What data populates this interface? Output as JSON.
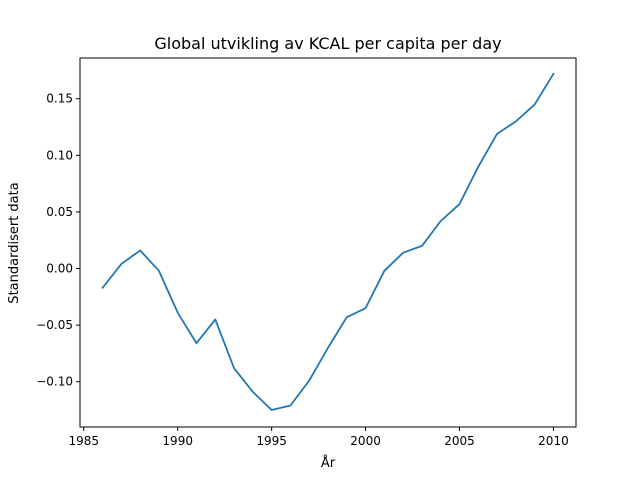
{
  "chart_data": {
    "type": "line",
    "title": "Global utvikling av KCAL per capita per day",
    "xlabel": "År",
    "ylabel": "Standardisert data",
    "xlim": [
      1984.8,
      2011.2
    ],
    "ylim": [
      -0.14,
      0.186
    ],
    "xticks": [
      1985,
      1990,
      1995,
      2000,
      2005,
      2010
    ],
    "xtick_labels": [
      "1985",
      "1990",
      "1995",
      "2000",
      "2005",
      "2010"
    ],
    "yticks": [
      -0.1,
      -0.05,
      0.0,
      0.05,
      0.1,
      0.15
    ],
    "ytick_labels": [
      "−0.10",
      "−0.05",
      "0.00",
      "0.05",
      "0.10",
      "0.15"
    ],
    "grid": false,
    "legend": "none",
    "series": [
      {
        "color": "#1f77b4",
        "x": [
          1986,
          1987,
          1988,
          1989,
          1990,
          1991,
          1992,
          1993,
          1994,
          1995,
          1996,
          1997,
          1998,
          1999,
          2000,
          2001,
          2002,
          2003,
          2004,
          2005,
          2006,
          2007,
          2008,
          2009,
          2010
        ],
        "y": [
          -0.017,
          0.004,
          0.016,
          -0.002,
          -0.039,
          -0.066,
          -0.045,
          -0.088,
          -0.109,
          -0.125,
          -0.121,
          -0.099,
          -0.07,
          -0.043,
          -0.035,
          -0.002,
          0.014,
          0.02,
          0.042,
          0.057,
          0.09,
          0.119,
          0.13,
          0.145,
          0.172
        ]
      }
    ]
  }
}
